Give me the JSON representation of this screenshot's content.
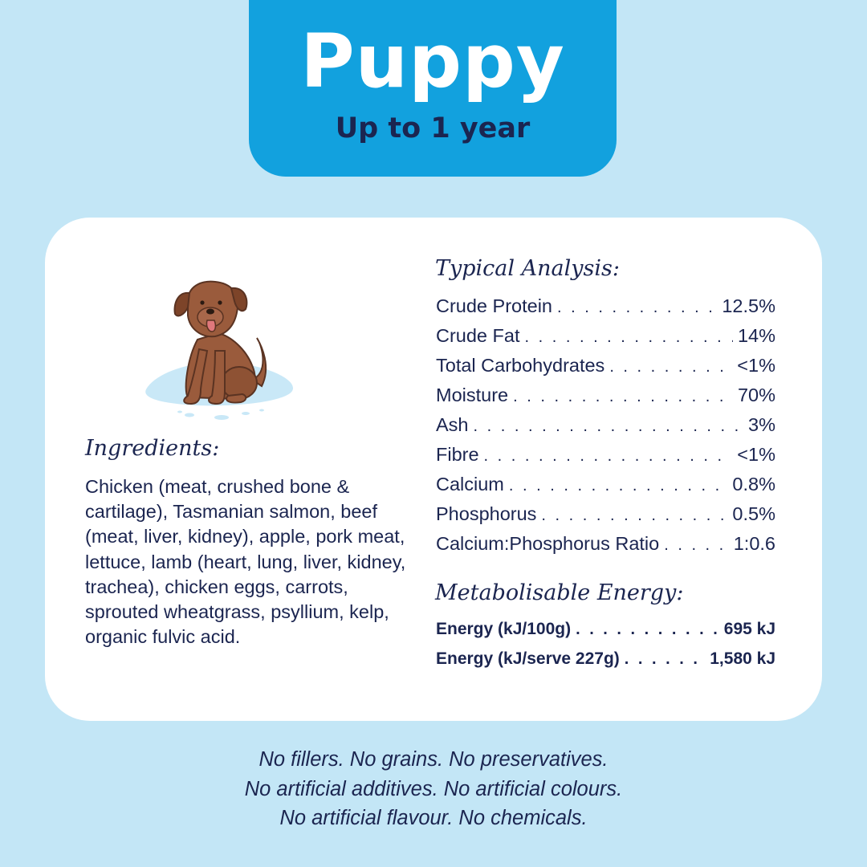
{
  "header": {
    "title": "Puppy",
    "subtitle": "Up to 1 year"
  },
  "ingredients": {
    "heading": "Ingredients:",
    "text": "Chicken (meat, crushed bone & cartilage), Tasmanian salmon, beef (meat, liver, kidney), apple, pork meat, lettuce, lamb (heart, lung, liver, kidney, trachea), chicken eggs, carrots, sprouted wheatgrass, psyllium, kelp, organic fulvic acid."
  },
  "typical_analysis": {
    "heading": "Typical Analysis:",
    "rows": [
      {
        "label": "Crude Protein",
        "value": "12.5%"
      },
      {
        "label": "Crude Fat",
        "value": "14%"
      },
      {
        "label": "Total Carbohydrates",
        "value": "<1%"
      },
      {
        "label": "Moisture",
        "value": "70%"
      },
      {
        "label": "Ash",
        "value": "3%"
      },
      {
        "label": "Fibre",
        "value": "<1%"
      },
      {
        "label": "Calcium",
        "value": "0.8%"
      },
      {
        "label": "Phosphorus",
        "value": "0.5%"
      },
      {
        "label": "Calcium:Phosphorus Ratio",
        "value": "1:0.6"
      }
    ]
  },
  "metabolisable_energy": {
    "heading": "Metabolisable Energy:",
    "rows": [
      {
        "label": "Energy (kJ/100g)",
        "value": "695 kJ"
      },
      {
        "label": "Energy (kJ/serve 227g)",
        "value": "1,580 kJ"
      }
    ]
  },
  "footer": {
    "lines": [
      "No fillers. No grains. No preservatives.",
      "No artificial additives. No artificial colours.",
      "No artificial flavour. No chemicals."
    ]
  },
  "colors": {
    "background": "#c3e6f6",
    "accent": "#12a1de",
    "text": "#1b2550",
    "dog": "#9a5b3c"
  },
  "icons": {
    "dog": "sitting-puppy-illustration"
  }
}
